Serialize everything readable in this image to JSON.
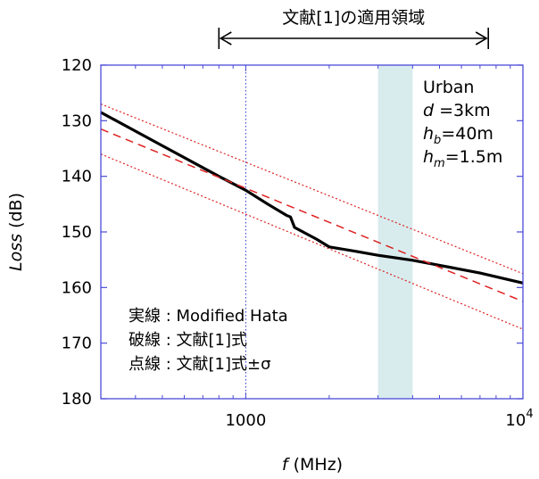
{
  "chart_data": {
    "type": "line",
    "x_scale": "log",
    "xlim": [
      300,
      10000
    ],
    "ylim": [
      120,
      180
    ],
    "y_inverted": true,
    "grid": false,
    "xlabel": {
      "var": "f",
      "unit": " (MHz)"
    },
    "ylabel": {
      "var": "L",
      "rest": "oss",
      "unit": " (dB)"
    },
    "x_ticks": [
      {
        "value": 1000,
        "label": "1000"
      },
      {
        "value": 10000,
        "base": "10",
        "exp": "4"
      }
    ],
    "y_ticks": [
      120,
      130,
      140,
      150,
      160,
      170,
      180
    ],
    "range_arrow": {
      "label": "文献[1]の適用領域",
      "from": 800,
      "to": 7500
    },
    "shaded_band": {
      "from": 3000,
      "to": 4000,
      "color": "#d8ecee"
    },
    "vertical_marker": {
      "x": 1000,
      "color": "#2233cc"
    },
    "conditions": [
      {
        "v": "",
        "sub": "",
        "rest": "Urban"
      },
      {
        "v": "d",
        "sub": "",
        "rest": " =3km"
      },
      {
        "v": "h",
        "sub": "b",
        "rest": "=40m"
      },
      {
        "v": "h",
        "sub": "m",
        "rest": "=1.5m"
      }
    ],
    "legend_notes": [
      "実線 : Modified Hata",
      "破線 : 文献[1]式",
      "点線 : 文献[1]式±σ"
    ],
    "series": [
      {
        "style": "solid",
        "color": "#000000",
        "x": [
          300,
          500,
          800,
          1000,
          1200,
          1400,
          1450,
          1500,
          1800,
          2000,
          2500,
          3000,
          4000,
          5000,
          7000,
          10000
        ],
        "y": [
          128.5,
          134.5,
          140.0,
          142.5,
          145.0,
          147.0,
          147.3,
          149.2,
          151.3,
          152.7,
          153.5,
          154.2,
          155.1,
          156.0,
          157.4,
          159.2
        ]
      },
      {
        "style": "dashed",
        "color": "#dd2222",
        "x": [
          300,
          10000
        ],
        "y": [
          131.5,
          162.5
        ]
      },
      {
        "style": "dotted",
        "color": "#dd2222",
        "x": [
          300,
          10000
        ],
        "y": [
          127.0,
          157.5
        ]
      },
      {
        "style": "dotted",
        "color": "#dd2222",
        "x": [
          300,
          10000
        ],
        "y": [
          136.0,
          167.5
        ]
      }
    ]
  }
}
